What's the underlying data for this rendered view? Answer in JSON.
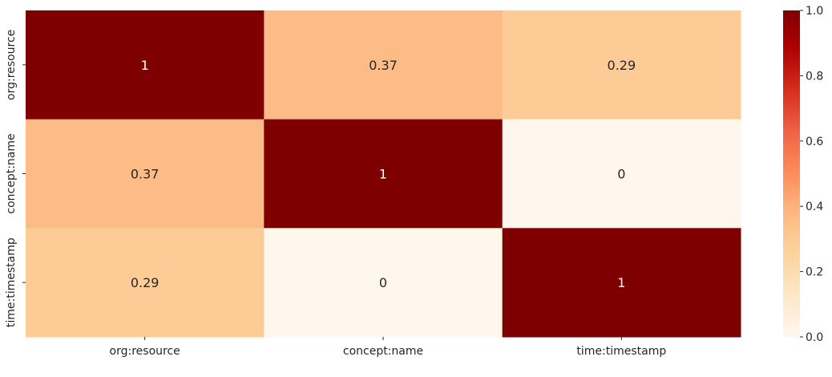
{
  "chart_data": {
    "type": "heatmap",
    "x_categories": [
      "org:resource",
      "concept:name",
      "time:timestamp"
    ],
    "y_categories": [
      "org:resource",
      "concept:name",
      "time:timestamp"
    ],
    "values": [
      [
        1,
        0.37,
        0.29
      ],
      [
        0.37,
        1,
        0
      ],
      [
        0.29,
        0,
        1
      ]
    ],
    "cell_labels": [
      [
        "1",
        "0.37",
        "0.29"
      ],
      [
        "0.37",
        "1",
        "0"
      ],
      [
        "0.29",
        "0",
        "1"
      ]
    ],
    "colorscale": "OrRd",
    "vmin": 0,
    "vmax": 1,
    "colorbar_ticks": [
      0.0,
      0.2,
      0.4,
      0.6,
      0.8,
      1.0
    ],
    "colorbar_tick_labels": [
      "0.0",
      "0.2",
      "0.4",
      "0.6",
      "0.8",
      "1.0"
    ],
    "title": "",
    "xlabel": "",
    "ylabel": ""
  }
}
